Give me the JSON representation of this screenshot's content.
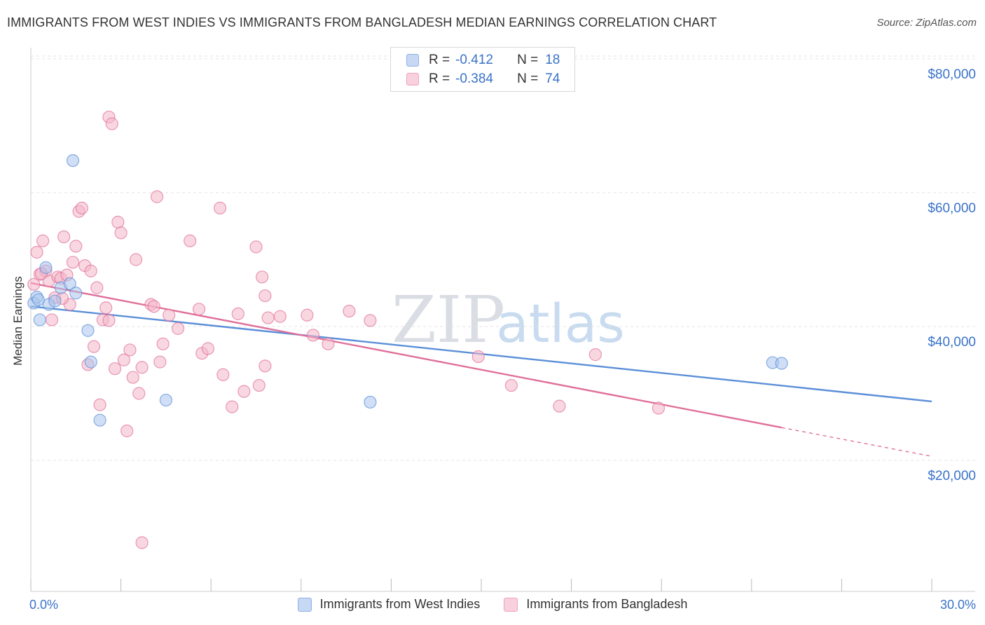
{
  "title": "IMMIGRANTS FROM WEST INDIES VS IMMIGRANTS FROM BANGLADESH MEDIAN EARNINGS CORRELATION CHART",
  "source": "Source: ZipAtlas.com",
  "watermark": {
    "zip": "ZIP",
    "atlas": "atlas"
  },
  "stats": [
    {
      "r_label": "R =",
      "r_value": "-0.412",
      "n_label": "N =",
      "n_value": "18",
      "color": "#a9c4ec"
    },
    {
      "r_label": "R =",
      "r_value": "-0.384",
      "n_label": "N =",
      "n_value": "74",
      "color": "#f4b6c8"
    }
  ],
  "legend": [
    {
      "label": "Immigrants from West Indies",
      "color": "#a9c4ec"
    },
    {
      "label": "Immigrants from Bangladesh",
      "color": "#f4b6c8"
    }
  ],
  "chart_data": {
    "type": "scatter",
    "title": "IMMIGRANTS FROM WEST INDIES VS IMMIGRANTS FROM BANGLADESH MEDIAN EARNINGS CORRELATION CHART",
    "xlabel": "",
    "ylabel": "Median Earnings",
    "xlim": [
      0,
      30
    ],
    "ylim": [
      0,
      80000
    ],
    "x_tick_labels": [
      "0.0%",
      "30.0%"
    ],
    "y_ticks": [
      20000,
      40000,
      60000,
      80000
    ],
    "y_tick_labels": [
      "$20,000",
      "$40,000",
      "$60,000",
      "$80,000"
    ],
    "grid": true,
    "legend_position": "bottom",
    "series": [
      {
        "name": "Immigrants from West Indies",
        "color": "#5b8fd8",
        "fill": "#a9c4ec",
        "points": [
          [
            0.1,
            43500
          ],
          [
            0.2,
            44400
          ],
          [
            0.3,
            41000
          ],
          [
            0.5,
            48800
          ],
          [
            0.6,
            43300
          ],
          [
            0.8,
            43800
          ],
          [
            1.0,
            45800
          ],
          [
            1.3,
            46400
          ],
          [
            1.5,
            45000
          ],
          [
            1.4,
            64800
          ],
          [
            1.9,
            39400
          ],
          [
            2.0,
            34700
          ],
          [
            2.3,
            26000
          ],
          [
            4.5,
            29000
          ],
          [
            11.3,
            28700
          ],
          [
            24.7,
            34600
          ],
          [
            25.0,
            34500
          ],
          [
            0.25,
            44000
          ]
        ],
        "trend": {
          "x0": 0,
          "y0": 43000,
          "x1": 30,
          "y1": 28800
        }
      },
      {
        "name": "Immigrants from Bangladesh",
        "color": "#e0709a",
        "fill": "#f4b6c8",
        "points": [
          [
            0.1,
            46300
          ],
          [
            0.2,
            51100
          ],
          [
            0.3,
            47800
          ],
          [
            0.4,
            52800
          ],
          [
            0.5,
            48300
          ],
          [
            0.6,
            46800
          ],
          [
            0.7,
            41000
          ],
          [
            0.8,
            44300
          ],
          [
            0.9,
            47400
          ],
          [
            1.0,
            47200
          ],
          [
            1.1,
            53400
          ],
          [
            1.2,
            47700
          ],
          [
            1.3,
            43300
          ],
          [
            1.4,
            49600
          ],
          [
            1.5,
            52000
          ],
          [
            1.6,
            57200
          ],
          [
            1.7,
            57700
          ],
          [
            1.8,
            49100
          ],
          [
            1.9,
            34300
          ],
          [
            2.0,
            48300
          ],
          [
            2.1,
            37000
          ],
          [
            2.2,
            45800
          ],
          [
            2.3,
            28300
          ],
          [
            2.4,
            41000
          ],
          [
            2.5,
            42800
          ],
          [
            2.6,
            71300
          ],
          [
            2.6,
            40900
          ],
          [
            2.7,
            70300
          ],
          [
            2.8,
            33700
          ],
          [
            2.9,
            55600
          ],
          [
            3.0,
            54000
          ],
          [
            3.1,
            35000
          ],
          [
            3.2,
            24400
          ],
          [
            3.3,
            36500
          ],
          [
            3.4,
            32400
          ],
          [
            3.5,
            50000
          ],
          [
            3.6,
            30000
          ],
          [
            3.7,
            33900
          ],
          [
            3.7,
            7700
          ],
          [
            4.0,
            43300
          ],
          [
            4.1,
            43000
          ],
          [
            4.2,
            59400
          ],
          [
            4.3,
            34700
          ],
          [
            4.4,
            37400
          ],
          [
            4.6,
            41700
          ],
          [
            4.9,
            39700
          ],
          [
            5.3,
            52800
          ],
          [
            5.6,
            42600
          ],
          [
            5.7,
            36000
          ],
          [
            5.9,
            36700
          ],
          [
            6.3,
            57700
          ],
          [
            6.4,
            32800
          ],
          [
            6.7,
            28000
          ],
          [
            6.9,
            41900
          ],
          [
            7.1,
            30300
          ],
          [
            7.5,
            51900
          ],
          [
            7.6,
            31200
          ],
          [
            7.7,
            47400
          ],
          [
            7.8,
            44600
          ],
          [
            7.8,
            34100
          ],
          [
            7.9,
            41300
          ],
          [
            8.3,
            41500
          ],
          [
            9.2,
            41700
          ],
          [
            9.4,
            38700
          ],
          [
            9.9,
            37400
          ],
          [
            10.6,
            42300
          ],
          [
            11.3,
            40900
          ],
          [
            14.9,
            35500
          ],
          [
            16.0,
            31200
          ],
          [
            17.6,
            28100
          ],
          [
            18.8,
            35800
          ],
          [
            20.9,
            27800
          ],
          [
            1.05,
            44200
          ],
          [
            0.35,
            47900
          ]
        ],
        "trend": {
          "x0": 0,
          "y0": 46500,
          "x1": 25,
          "y1": 24900,
          "dashed_to_x": 30,
          "dashed_to_y": 20600
        }
      }
    ]
  }
}
